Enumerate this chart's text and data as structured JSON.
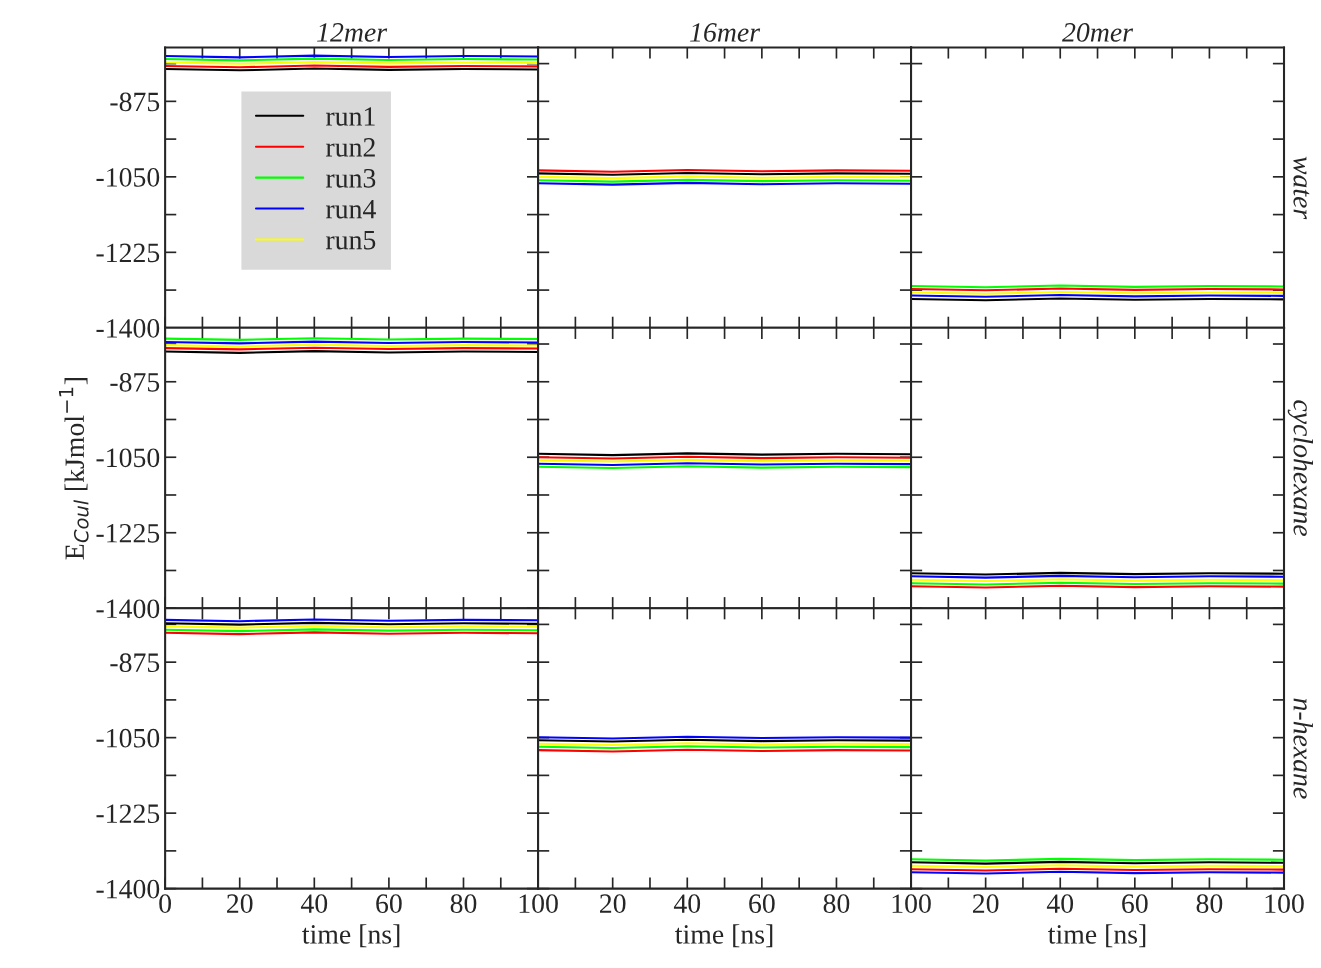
{
  "chart_data": [
    {
      "type": "line",
      "title": "12mer",
      "x": [
        0,
        20,
        40,
        60,
        80,
        100
      ],
      "xlim": [
        0,
        100
      ],
      "ylim": [
        -1400,
        -750
      ],
      "tick_labels": "y",
      "legend": "center",
      "xticks": [
        0,
        {
          "value": 10,
          "label": null
        },
        20,
        {
          "value": 30,
          "label": null
        },
        40,
        {
          "value": 50,
          "label": null
        },
        60,
        {
          "value": 70,
          "label": null
        },
        80,
        {
          "value": 90,
          "label": null
        },
        100
      ],
      "yticks": [
        -1400,
        {
          "value": -1312.5,
          "label": null
        },
        -1225,
        {
          "value": -1137.5,
          "label": null
        },
        -1050,
        {
          "value": -962.5,
          "label": null
        },
        -875,
        {
          "value": -787.5,
          "label": null
        }
      ],
      "series": [
        {
          "name": "run1",
          "color": "#000000",
          "values": [
            -800,
            -803,
            -799,
            -802,
            -800,
            -801
          ]
        },
        {
          "name": "run2",
          "color": "#ff0000",
          "values": [
            -793,
            -796,
            -792,
            -795,
            -793,
            -794
          ]
        },
        {
          "name": "run3",
          "color": "#00ff00",
          "values": [
            -777,
            -780,
            -776,
            -779,
            -777,
            -778
          ]
        },
        {
          "name": "run4",
          "color": "#0000ff",
          "values": [
            -770,
            -773,
            -769,
            -772,
            -770,
            -771
          ]
        },
        {
          "name": "run5",
          "color": "#ffff00",
          "values": [
            -785,
            -788,
            -784,
            -787,
            -785,
            -786
          ]
        }
      ]
    },
    {
      "type": "line",
      "title": "16mer",
      "x": [
        0,
        20,
        40,
        60,
        80,
        100
      ],
      "xlim": [
        0,
        100
      ],
      "ylim": [
        -1400,
        -750
      ],
      "tick_labels": false,
      "xticks": [
        0,
        {
          "value": 10,
          "label": null
        },
        20,
        {
          "value": 30,
          "label": null
        },
        40,
        {
          "value": 50,
          "label": null
        },
        60,
        {
          "value": 70,
          "label": null
        },
        80,
        {
          "value": 90,
          "label": null
        },
        100
      ],
      "yticks": [
        -1400,
        {
          "value": -1312.5,
          "label": null
        },
        -1225,
        {
          "value": -1137.5,
          "label": null
        },
        -1050,
        {
          "value": -962.5,
          "label": null
        },
        -875,
        {
          "value": -787.5,
          "label": null
        }
      ],
      "series": [
        {
          "color": "#000000",
          "values": [
            -1042,
            -1045,
            -1041,
            -1044,
            -1042,
            -1043
          ]
        },
        {
          "color": "#ff0000",
          "values": [
            -1035,
            -1038,
            -1034,
            -1037,
            -1035,
            -1036
          ]
        },
        {
          "color": "#00ff00",
          "values": [
            -1058,
            -1061,
            -1057,
            -1060,
            -1058,
            -1059
          ]
        },
        {
          "color": "#0000ff",
          "values": [
            -1065,
            -1068,
            -1064,
            -1067,
            -1065,
            -1066
          ]
        },
        {
          "color": "#ffff00",
          "values": [
            -1050,
            -1053,
            -1049,
            -1052,
            -1050,
            -1051
          ]
        }
      ]
    },
    {
      "type": "line",
      "title": "20mer",
      "y2label": "water",
      "x": [
        0,
        20,
        40,
        60,
        80,
        100
      ],
      "xlim": [
        0,
        100
      ],
      "ylim": [
        -1400,
        -750
      ],
      "tick_labels": false,
      "xticks": [
        0,
        {
          "value": 10,
          "label": null
        },
        20,
        {
          "value": 30,
          "label": null
        },
        40,
        {
          "value": 50,
          "label": null
        },
        60,
        {
          "value": 70,
          "label": null
        },
        80,
        {
          "value": 90,
          "label": null
        },
        100
      ],
      "yticks": [
        -1400,
        {
          "value": -1312.5,
          "label": null
        },
        -1225,
        {
          "value": -1137.5,
          "label": null
        },
        -1050,
        {
          "value": -962.5,
          "label": null
        },
        -875,
        {
          "value": -787.5,
          "label": null
        }
      ],
      "series": [
        {
          "color": "#000000",
          "values": [
            -1333,
            -1336,
            -1332,
            -1335,
            -1333,
            -1334
          ]
        },
        {
          "color": "#ff0000",
          "values": [
            -1310,
            -1313,
            -1309,
            -1312,
            -1310,
            -1311
          ]
        },
        {
          "color": "#00ff00",
          "values": [
            -1303,
            -1306,
            -1302,
            -1305,
            -1303,
            -1304
          ]
        },
        {
          "color": "#0000ff",
          "values": [
            -1325,
            -1328,
            -1324,
            -1327,
            -1325,
            -1326
          ]
        },
        {
          "color": "#ffff00",
          "values": [
            -1318,
            -1321,
            -1317,
            -1320,
            -1318,
            -1319
          ]
        }
      ]
    },
    {
      "type": "line",
      "ylabel": "E$_{Coul}$ [kJmol$^{−1}$]",
      "x": [
        0,
        20,
        40,
        60,
        80,
        100
      ],
      "xlim": [
        0,
        100
      ],
      "ylim": [
        -1400,
        -750
      ],
      "tick_labels": "y",
      "xticks": [
        0,
        {
          "value": 10,
          "label": null
        },
        20,
        {
          "value": 30,
          "label": null
        },
        40,
        {
          "value": 50,
          "label": null
        },
        60,
        {
          "value": 70,
          "label": null
        },
        80,
        {
          "value": 90,
          "label": null
        },
        100
      ],
      "yticks": [
        -1400,
        {
          "value": -1312.5,
          "label": null
        },
        -1225,
        {
          "value": -1137.5,
          "label": null
        },
        -1050,
        {
          "value": -962.5,
          "label": null
        },
        -875,
        {
          "value": -787.5,
          "label": null
        }
      ],
      "series": [
        {
          "color": "#000000",
          "values": [
            -805,
            -808,
            -804,
            -807,
            -805,
            -806
          ]
        },
        {
          "color": "#ff0000",
          "values": [
            -797,
            -800,
            -796,
            -799,
            -797,
            -798
          ]
        },
        {
          "color": "#00ff00",
          "values": [
            -775,
            -778,
            -774,
            -777,
            -775,
            -776
          ]
        },
        {
          "color": "#0000ff",
          "values": [
            -783,
            -786,
            -782,
            -785,
            -783,
            -784
          ]
        },
        {
          "color": "#ffff00",
          "values": [
            -790,
            -793,
            -789,
            -792,
            -790,
            -791
          ]
        }
      ]
    },
    {
      "type": "line",
      "x": [
        0,
        20,
        40,
        60,
        80,
        100
      ],
      "xlim": [
        0,
        100
      ],
      "ylim": [
        -1400,
        -750
      ],
      "tick_labels": false,
      "xticks": [
        0,
        {
          "value": 10,
          "label": null
        },
        20,
        {
          "value": 30,
          "label": null
        },
        40,
        {
          "value": 50,
          "label": null
        },
        60,
        {
          "value": 70,
          "label": null
        },
        80,
        {
          "value": 90,
          "label": null
        },
        100
      ],
      "yticks": [
        -1400,
        {
          "value": -1312.5,
          "label": null
        },
        -1225,
        {
          "value": -1137.5,
          "label": null
        },
        -1050,
        {
          "value": -962.5,
          "label": null
        },
        -875,
        {
          "value": -787.5,
          "label": null
        }
      ],
      "series": [
        {
          "color": "#000000",
          "values": [
            -1042,
            -1045,
            -1041,
            -1044,
            -1042,
            -1043
          ]
        },
        {
          "color": "#ff0000",
          "values": [
            -1050,
            -1053,
            -1049,
            -1052,
            -1050,
            -1051
          ]
        },
        {
          "color": "#00ff00",
          "values": [
            -1072,
            -1075,
            -1071,
            -1074,
            -1072,
            -1073
          ]
        },
        {
          "color": "#0000ff",
          "values": [
            -1065,
            -1068,
            -1064,
            -1067,
            -1065,
            -1066
          ]
        },
        {
          "color": "#ffff00",
          "values": [
            -1057,
            -1060,
            -1056,
            -1059,
            -1057,
            -1058
          ]
        }
      ]
    },
    {
      "type": "line",
      "y2label": "cyclohexane",
      "x": [
        0,
        20,
        40,
        60,
        80,
        100
      ],
      "xlim": [
        0,
        100
      ],
      "ylim": [
        -1400,
        -750
      ],
      "tick_labels": false,
      "xticks": [
        0,
        {
          "value": 10,
          "label": null
        },
        20,
        {
          "value": 30,
          "label": null
        },
        40,
        {
          "value": 50,
          "label": null
        },
        60,
        {
          "value": 70,
          "label": null
        },
        80,
        {
          "value": 90,
          "label": null
        },
        100
      ],
      "yticks": [
        -1400,
        {
          "value": -1312.5,
          "label": null
        },
        -1225,
        {
          "value": -1137.5,
          "label": null
        },
        -1050,
        {
          "value": -962.5,
          "label": null
        },
        -875,
        {
          "value": -787.5,
          "label": null
        }
      ],
      "series": [
        {
          "color": "#000000",
          "values": [
            -1319,
            -1322,
            -1318,
            -1321,
            -1319,
            -1320
          ]
        },
        {
          "color": "#ff0000",
          "values": [
            -1349,
            -1352,
            -1348,
            -1351,
            -1349,
            -1350
          ]
        },
        {
          "color": "#00ff00",
          "values": [
            -1342,
            -1345,
            -1341,
            -1344,
            -1342,
            -1343
          ]
        },
        {
          "color": "#0000ff",
          "values": [
            -1326,
            -1329,
            -1325,
            -1328,
            -1326,
            -1327
          ]
        },
        {
          "color": "#ffff00",
          "values": [
            -1334,
            -1337,
            -1333,
            -1336,
            -1334,
            -1335
          ]
        }
      ]
    },
    {
      "type": "line",
      "xlabel": "time [ns]",
      "x": [
        0,
        20,
        40,
        60,
        80,
        100
      ],
      "xlim": [
        0,
        100
      ],
      "ylim": [
        -1400,
        -750
      ],
      "xticks": [
        0,
        {
          "value": 10,
          "label": null
        },
        20,
        {
          "value": 30,
          "label": null
        },
        40,
        {
          "value": 50,
          "label": null
        },
        60,
        {
          "value": 70,
          "label": null
        },
        80,
        {
          "value": 90,
          "label": null
        },
        100
      ],
      "yticks": [
        -1400,
        {
          "value": -1312.5,
          "label": null
        },
        -1225,
        {
          "value": -1137.5,
          "label": null
        },
        -1050,
        {
          "value": -962.5,
          "label": null
        },
        -875,
        {
          "value": -787.5,
          "label": null
        }
      ],
      "series": [
        {
          "color": "#000000",
          "values": [
            -785,
            -788,
            -784,
            -787,
            -785,
            -786
          ]
        },
        {
          "color": "#ff0000",
          "values": [
            -807,
            -810,
            -806,
            -809,
            -807,
            -808
          ]
        },
        {
          "color": "#00ff00",
          "values": [
            -800,
            -803,
            -799,
            -802,
            -800,
            -801
          ]
        },
        {
          "color": "#0000ff",
          "values": [
            -777,
            -780,
            -776,
            -779,
            -777,
            -778
          ]
        },
        {
          "color": "#ffff00",
          "values": [
            -792,
            -795,
            -791,
            -794,
            -792,
            -793
          ]
        }
      ]
    },
    {
      "type": "line",
      "xlabel": "time [ns]",
      "x": [
        0,
        20,
        40,
        60,
        80,
        100
      ],
      "xlim": [
        0,
        100
      ],
      "ylim": [
        -1400,
        -750
      ],
      "tick_labels": "x",
      "xticks": [
        {
          "value": 0,
          "label": null
        },
        {
          "value": 10,
          "label": null
        },
        20,
        {
          "value": 30,
          "label": null
        },
        40,
        {
          "value": 50,
          "label": null
        },
        60,
        {
          "value": 70,
          "label": null
        },
        80,
        {
          "value": 90,
          "label": null
        },
        100
      ],
      "yticks": [
        -1400,
        {
          "value": -1312.5,
          "label": null
        },
        -1225,
        {
          "value": -1137.5,
          "label": null
        },
        -1050,
        {
          "value": -962.5,
          "label": null
        },
        -875,
        {
          "value": -787.5,
          "label": null
        }
      ],
      "series": [
        {
          "color": "#000000",
          "values": [
            -1056,
            -1059,
            -1055,
            -1058,
            -1056,
            -1057
          ]
        },
        {
          "color": "#ff0000",
          "values": [
            -1079,
            -1082,
            -1078,
            -1081,
            -1079,
            -1080
          ]
        },
        {
          "color": "#00ff00",
          "values": [
            -1071,
            -1074,
            -1070,
            -1073,
            -1071,
            -1072
          ]
        },
        {
          "color": "#0000ff",
          "values": [
            -1049,
            -1052,
            -1048,
            -1051,
            -1049,
            -1050
          ]
        },
        {
          "color": "#ffff00",
          "values": [
            -1064,
            -1067,
            -1063,
            -1066,
            -1064,
            -1065
          ]
        }
      ]
    },
    {
      "type": "line",
      "xlabel": "time [ns]",
      "y2label": "n-hexane",
      "x": [
        0,
        20,
        40,
        60,
        80,
        100
      ],
      "xlim": [
        0,
        100
      ],
      "ylim": [
        -1400,
        -750
      ],
      "tick_labels": "x",
      "xticks": [
        {
          "value": 0,
          "label": null
        },
        {
          "value": 10,
          "label": null
        },
        20,
        {
          "value": 30,
          "label": null
        },
        40,
        {
          "value": 50,
          "label": null
        },
        60,
        {
          "value": 70,
          "label": null
        },
        80,
        {
          "value": 90,
          "label": null
        },
        100
      ],
      "yticks": [
        -1400,
        {
          "value": -1312.5,
          "label": null
        },
        -1225,
        {
          "value": -1137.5,
          "label": null
        },
        -1050,
        {
          "value": -962.5,
          "label": null
        },
        -875,
        {
          "value": -787.5,
          "label": null
        }
      ],
      "series": [
        {
          "color": "#000000",
          "values": [
            -1339,
            -1342,
            -1338,
            -1341,
            -1339,
            -1340
          ]
        },
        {
          "color": "#ff0000",
          "values": [
            -1355,
            -1358,
            -1354,
            -1357,
            -1355,
            -1356
          ]
        },
        {
          "color": "#00ff00",
          "values": [
            -1332,
            -1335,
            -1331,
            -1334,
            -1332,
            -1333
          ]
        },
        {
          "color": "#0000ff",
          "values": [
            -1362,
            -1365,
            -1361,
            -1364,
            -1362,
            -1363
          ]
        },
        {
          "color": "#ffff00",
          "values": [
            -1347,
            -1350,
            -1346,
            -1349,
            -1347,
            -1348
          ]
        }
      ]
    }
  ]
}
